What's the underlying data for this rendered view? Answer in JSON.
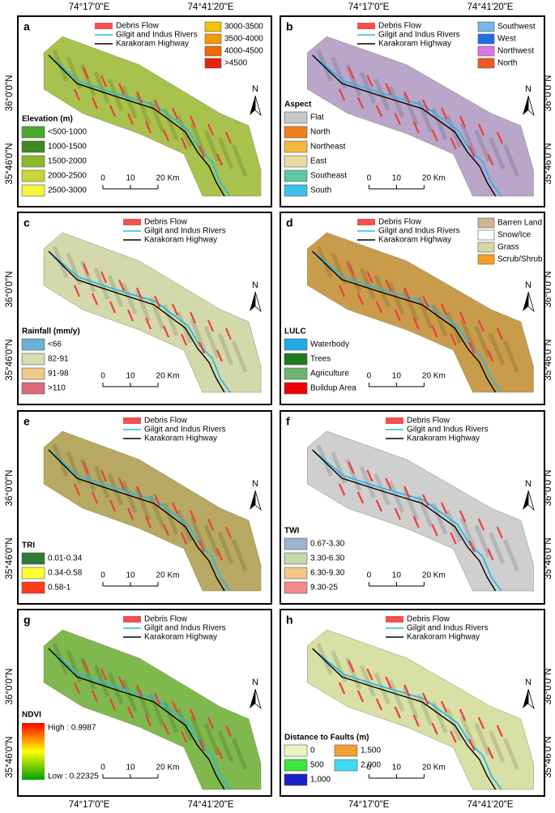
{
  "coords": {
    "lon": [
      "74°17'0\"E",
      "74°41'20\"E"
    ],
    "lat": [
      "36°0'0\"N",
      "35°46'0\"N"
    ]
  },
  "common_legend": [
    "Debris Flow",
    "Gilgit and Indus Rivers",
    "Karakoram Highway"
  ],
  "scale_bar": [
    "0",
    "10",
    "20 Km"
  ],
  "north": "N",
  "panels": [
    {
      "letter": "a",
      "map_color": "#a9c24e",
      "legend_title": "Elevation (m)",
      "items": [
        {
          "label": "<500-1000",
          "color": "#4aa82c"
        },
        {
          "label": "1000-1500",
          "color": "#3f8a22"
        },
        {
          "label": "1500-2000",
          "color": "#8db82a"
        },
        {
          "label": "2000-2500",
          "color": "#c8d63a"
        },
        {
          "label": "2500-3000",
          "color": "#f5f53c"
        }
      ],
      "extra_items": [
        {
          "label": "3000-3500",
          "color": "#f2c500"
        },
        {
          "label": "3500-4000",
          "color": "#f39a00"
        },
        {
          "label": "4000-4500",
          "color": "#ef6a00"
        },
        {
          "label": ">4500",
          "color": "#e8200e"
        }
      ]
    },
    {
      "letter": "b",
      "map_color": "#b9a6c9",
      "legend_title": "Aspect",
      "items": [
        {
          "label": "Flat",
          "color": "#c8c8c8"
        },
        {
          "label": "North",
          "color": "#f07d1e"
        },
        {
          "label": "Northeast",
          "color": "#f5b83c"
        },
        {
          "label": "East",
          "color": "#e6dca0"
        },
        {
          "label": "Southeast",
          "color": "#5ec8a0"
        },
        {
          "label": "South",
          "color": "#3cc0e6"
        }
      ],
      "extra_items": [
        {
          "label": "Southwest",
          "color": "#7ab4ec"
        },
        {
          "label": "West",
          "color": "#1e6ee6"
        },
        {
          "label": "Northwest",
          "color": "#dc78e6"
        },
        {
          "label": "North",
          "color": "#f05a1e"
        }
      ]
    },
    {
      "letter": "c",
      "map_color": "#d4d9ac",
      "legend_title": "Rainfall (mm/y)",
      "items": [
        {
          "label": "<66",
          "color": "#6ab0d8"
        },
        {
          "label": "82-91",
          "color": "#d2deb0"
        },
        {
          "label": "91-98",
          "color": "#f2c88a"
        },
        {
          "label": ">110",
          "color": "#e06878"
        }
      ]
    },
    {
      "letter": "d",
      "map_color": "#c99c4c",
      "legend_title": "LULC",
      "items": [
        {
          "label": "Waterbody",
          "color": "#1eaae6"
        },
        {
          "label": "Trees",
          "color": "#1e7a1e"
        },
        {
          "label": "Agriculture",
          "color": "#6eb46e"
        },
        {
          "label": "Buildup Area",
          "color": "#f00000"
        }
      ],
      "extra_items": [
        {
          "label": "Barren Land",
          "color": "#d2b48c"
        },
        {
          "label": "Snow/Ice",
          "color": "#ffffff"
        },
        {
          "label": "Grass",
          "color": "#d8d8a0"
        },
        {
          "label": "Scrub/Shrub",
          "color": "#f5a020"
        }
      ]
    },
    {
      "letter": "e",
      "map_color": "#b7a862",
      "legend_title": "TRI",
      "items": [
        {
          "label": "0.01-0.34",
          "color": "#2e7d32"
        },
        {
          "label": "0.34-0.58",
          "color": "#ffff33"
        },
        {
          "label": "0.58-1",
          "color": "#ff3b1e"
        }
      ]
    },
    {
      "letter": "f",
      "map_color": "#cfcfcf",
      "legend_title": "TWI",
      "items": [
        {
          "label": "0.67-3.30",
          "color": "#9ab4d0"
        },
        {
          "label": "3.30-6.30",
          "color": "#c8d8a8"
        },
        {
          "label": "6.30-9.30",
          "color": "#f2c88a"
        },
        {
          "label": "9.30-25",
          "color": "#f58a8a"
        }
      ]
    },
    {
      "letter": "g",
      "map_color": "#7fb84c",
      "legend_title": "NDVI",
      "gradient": {
        "high": "High : 0.9987",
        "low": "Low : 0.22325",
        "colors": [
          "#ff0000",
          "#ffff00",
          "#00a000"
        ]
      }
    },
    {
      "letter": "h",
      "map_color": "#d8e0a6",
      "legend_title": "Distance to Faults (m)",
      "items": [
        {
          "label": "0",
          "color": "#e8f5c0"
        },
        {
          "label": "500",
          "color": "#3ce63c"
        },
        {
          "label": "1,000",
          "color": "#1e1ec8"
        },
        {
          "label": "1,500",
          "color": "#f0a030"
        },
        {
          "label": "2,000",
          "color": "#3cdcf0"
        }
      ]
    }
  ]
}
